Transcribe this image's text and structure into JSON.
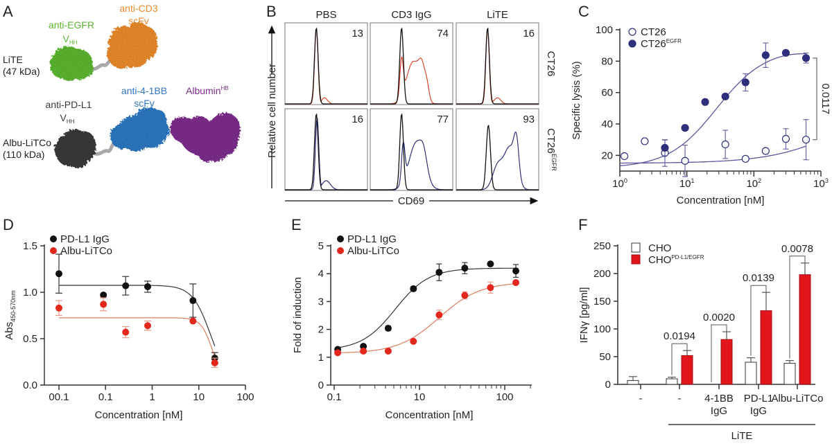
{
  "figure": {
    "panel_labels": [
      "A",
      "B",
      "C",
      "D",
      "E",
      "F"
    ]
  },
  "panelA": {
    "constructs": [
      {
        "name": "LiTE",
        "mw": "(47 kDa)"
      },
      {
        "name": "Albu-LiTCo",
        "mw": "(110 kDa)"
      }
    ],
    "domains": [
      {
        "label": "anti-EGFR",
        "sub": "HH",
        "prefix": "V",
        "color": "#5cb531"
      },
      {
        "label": "anti-CD3",
        "line2": "scFv",
        "color": "#e8892b"
      },
      {
        "label": "anti-PD-L1",
        "sub": "HH",
        "prefix": "V",
        "color": "#3a3a3a"
      },
      {
        "label": "anti-4-1BB",
        "line2": "scFv",
        "color": "#2f77c0"
      },
      {
        "label": "Albumin",
        "sup": "HB",
        "color": "#7b2d8b"
      }
    ],
    "linker_color": "#a8a8a8"
  },
  "chart_data": [
    {
      "id": "B",
      "type": "histogram-grid",
      "columns": [
        "PBS",
        "CD3 IgG",
        "LiTE"
      ],
      "rows": [
        {
          "label": "CT26",
          "label_sup": "",
          "color": "#d9472b"
        },
        {
          "label": "CT26",
          "label_sup": "EGFR",
          "color": "#2e2f7a"
        }
      ],
      "values": [
        [
          13,
          74,
          16
        ],
        [
          16,
          77,
          93
        ]
      ],
      "xlabel": "CD69",
      "ylabel": "Relative cell number",
      "control_color": "#111111"
    },
    {
      "id": "C",
      "type": "scatter",
      "title": "",
      "xlabel": "Concentration [nM]",
      "ylabel": "Specific lysis (%)",
      "xscale": "log",
      "xlim": [
        1,
        1000
      ],
      "ylim": [
        10,
        100
      ],
      "xticks": [
        {
          "v": 1,
          "exp": "0"
        },
        {
          "v": 10,
          "exp": "1"
        },
        {
          "v": 100,
          "exp": "2"
        },
        {
          "v": 1000,
          "exp": "3"
        }
      ],
      "yticks": [
        20,
        40,
        60,
        80,
        100
      ],
      "legend_position": "top-left",
      "series": [
        {
          "name": "CT26",
          "name_sup": "",
          "filled": false,
          "color": "#2e2f7a",
          "points": [
            [
              1.17,
              19.5,
              0
            ],
            [
              2.35,
              29,
              0
            ],
            [
              4.7,
              21.5,
              8.5
            ],
            [
              9.4,
              16.5,
              10
            ],
            [
              37.5,
              27,
              9
            ],
            [
              75,
              17.8,
              0
            ],
            [
              150,
              22.8,
              0
            ],
            [
              300,
              30.5,
              6.5
            ],
            [
              600,
              30,
              12.8
            ]
          ],
          "fit": {
            "bottom": 15,
            "top": 60,
            "ec50": 2500,
            "hill": 0.8
          }
        },
        {
          "name": "CT26",
          "name_sup": "EGFR",
          "filled": true,
          "color": "#2e2f7a",
          "points": [
            [
              4.7,
              24.8,
              5
            ],
            [
              9.4,
              37.5,
              1.5
            ],
            [
              18.75,
              54,
              0
            ],
            [
              37.5,
              57.5,
              1.5
            ],
            [
              75,
              66.5,
              5.5
            ],
            [
              150,
              83.8,
              7.8
            ],
            [
              300,
              85.3,
              1.5
            ],
            [
              600,
              82,
              3.2
            ]
          ],
          "fit": {
            "bottom": 12,
            "top": 88,
            "ec50": 28,
            "hill": 1.2,
            "hook": true
          }
        }
      ],
      "annotation": {
        "text": "0.0117",
        "y_from": 30,
        "y_to": 82
      }
    },
    {
      "id": "D",
      "type": "scatter",
      "xlabel": "Concentration [nM]",
      "ylabel": "Abs",
      "ylabel_sub": "450-570nm",
      "xscale": "log",
      "xticks": [
        {
          "v": 0.01,
          "label": "00.1"
        },
        {
          "v": 0.1,
          "label": "0.1"
        },
        {
          "v": 1,
          "label": "1"
        },
        {
          "v": 10,
          "label": "10"
        },
        {
          "v": 100,
          "label": "100"
        }
      ],
      "xlim": [
        0.01,
        100
      ],
      "ylim": [
        0,
        1.5
      ],
      "yticks": [
        "0.0",
        "0.5",
        "1.0",
        "1.5"
      ],
      "legend_position": "top-left",
      "series": [
        {
          "name": "PD-L1 IgG",
          "color": "#111111",
          "fit_color": "#333333",
          "points": [
            [
              0.01,
              1.2,
              0.21
            ],
            [
              0.09,
              0.97,
              0
            ],
            [
              0.27,
              1.07,
              0.1
            ],
            [
              0.8,
              1.06,
              0.06
            ],
            [
              7.5,
              0.91,
              0.18
            ],
            [
              22,
              0.29,
              0.06
            ]
          ],
          "fit": {
            "top": 1.075,
            "bottom": 0,
            "ic50": 18,
            "hill": 2.2
          }
        },
        {
          "name": "Albu-LiTCo",
          "color": "#e2271d",
          "fit_color": "#e07b5a",
          "points": [
            [
              0.01,
              0.83,
              0.08
            ],
            [
              0.09,
              0.87,
              0.07
            ],
            [
              0.27,
              0.57,
              0.06
            ],
            [
              0.8,
              0.64,
              0.05
            ],
            [
              7.5,
              0.69,
              0
            ],
            [
              22,
              0.24,
              0.05
            ]
          ],
          "fit": {
            "top": 0.725,
            "bottom": 0,
            "ic50": 20,
            "hill": 3.5
          }
        }
      ]
    },
    {
      "id": "E",
      "type": "scatter",
      "xlabel": "Concentration [nM]",
      "ylabel": "Fold of induction",
      "xscale": "log",
      "xticks": [
        {
          "v": 1,
          "label": "0.1"
        },
        {
          "v": 10,
          "label": "10"
        },
        {
          "v": 100,
          "label": "100"
        }
      ],
      "xlim": [
        0.9,
        200
      ],
      "ylim": [
        0,
        5
      ],
      "yticks": [
        "0",
        "1",
        "2",
        "3",
        "4",
        "5"
      ],
      "legend_position": "top-left",
      "series": [
        {
          "name": "PD-L1 IgG",
          "color": "#111111",
          "fit_color": "#333333",
          "points": [
            [
              1.1,
              1.28,
              0
            ],
            [
              2.2,
              1.39,
              0
            ],
            [
              4.3,
              2.04,
              0.08
            ],
            [
              8.5,
              3.46,
              0.07
            ],
            [
              17,
              4.05,
              0.3
            ],
            [
              34,
              4.2,
              0.2
            ],
            [
              68,
              4.35,
              0
            ],
            [
              135,
              4.1,
              0.23
            ]
          ],
          "fit": {
            "bottom": 1.25,
            "top": 4.2,
            "ec50": 5.2,
            "hill": 2.2
          }
        },
        {
          "name": "Albu-LiTCo",
          "color": "#e2271d",
          "fit_color": "#e07b5a",
          "points": [
            [
              1.1,
              1.16,
              0
            ],
            [
              2.2,
              1.22,
              0
            ],
            [
              4.3,
              1.22,
              0
            ],
            [
              8.5,
              1.57,
              0
            ],
            [
              17,
              2.52,
              0.17
            ],
            [
              34,
              3.22,
              0.13
            ],
            [
              68,
              3.5,
              0.2
            ],
            [
              135,
              3.68,
              0.06
            ]
          ],
          "fit": {
            "bottom": 1.14,
            "top": 3.7,
            "ec50": 17,
            "hill": 1.8
          }
        }
      ]
    },
    {
      "id": "F",
      "type": "bar",
      "xlabel": "",
      "ylabel": "IFNγ [pg/ml]",
      "ylim": [
        0,
        250
      ],
      "yticks": [
        "0",
        "50",
        "100",
        "150",
        "200",
        "250"
      ],
      "categories": [
        {
          "line1": "-",
          "line2": ""
        },
        {
          "line1": "-",
          "line2": ""
        },
        {
          "line1": "4-1BB",
          "line2": "IgG"
        },
        {
          "line1": "PD-L1",
          "line2": "IgG"
        },
        {
          "line1": "Albu-LiTCo",
          "line2": ""
        }
      ],
      "group_label": "LiTE",
      "group_covers": [
        1,
        4
      ],
      "legend_position": "top-left",
      "series": [
        {
          "name": "CHO",
          "name_sup": "",
          "fill": "#ffffff",
          "stroke": "#333333",
          "values": [
            7,
            10,
            0,
            40,
            38
          ],
          "errors": [
            7,
            3,
            0,
            8,
            5
          ]
        },
        {
          "name": "CHO",
          "name_sup": "PD-L1/EGFR",
          "fill": "#e2141c",
          "stroke": "#9e1016",
          "values": [
            0,
            52,
            81,
            133,
            198
          ],
          "errors": [
            0,
            9,
            14,
            33,
            21
          ]
        }
      ],
      "pvalues": [
        {
          "category": 1,
          "text": "0.0194"
        },
        {
          "category": 2,
          "text": "0.0020"
        },
        {
          "category": 3,
          "text": "0.0139"
        },
        {
          "category": 4,
          "text": "0.0078"
        }
      ]
    }
  ]
}
